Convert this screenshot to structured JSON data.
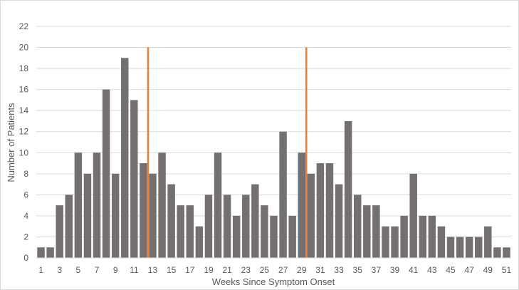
{
  "chart_data": {
    "type": "bar",
    "xlabel": "Weeks Since Symptom Onset",
    "ylabel": "Number of Patients",
    "ylim": [
      0,
      22
    ],
    "ytick_step": 2,
    "grid": true,
    "bar_color": "#757070",
    "grid_color": "#d9d9d9",
    "marker_color": "#ed7d31",
    "categories": [
      1,
      2,
      3,
      4,
      5,
      6,
      7,
      8,
      9,
      10,
      11,
      12,
      13,
      14,
      15,
      16,
      17,
      18,
      19,
      20,
      21,
      22,
      23,
      24,
      25,
      26,
      27,
      28,
      29,
      30,
      31,
      32,
      33,
      34,
      35,
      36,
      37,
      38,
      39,
      40,
      41,
      42,
      43,
      44,
      45,
      46,
      47,
      48,
      49,
      50,
      51
    ],
    "x_tick_labels": [
      "1",
      "3",
      "5",
      "7",
      "9",
      "11",
      "13",
      "15",
      "17",
      "19",
      "21",
      "23",
      "25",
      "27",
      "29",
      "31",
      "33",
      "35",
      "37",
      "39",
      "41",
      "43",
      "45",
      "47",
      "49",
      "51"
    ],
    "values": [
      1,
      1,
      5,
      6,
      10,
      8,
      10,
      16,
      8,
      19,
      15,
      9,
      8,
      10,
      7,
      5,
      5,
      3,
      6,
      10,
      6,
      4,
      6,
      7,
      5,
      4,
      12,
      4,
      10,
      8,
      9,
      9,
      7,
      13,
      6,
      5,
      5,
      3,
      3,
      4,
      8,
      4,
      4,
      3,
      2,
      2,
      2,
      2,
      3,
      1,
      1
    ],
    "vertical_markers": [
      {
        "x": 12.5,
        "value": 20
      },
      {
        "x": 29.5,
        "value": 20
      }
    ]
  }
}
